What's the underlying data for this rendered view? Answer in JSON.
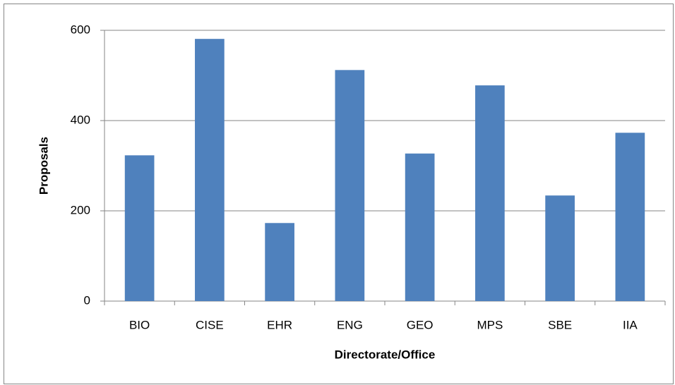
{
  "chart_data": {
    "type": "bar",
    "x_label": "Directorate/Office",
    "y_label": "Proposals",
    "categories": [
      "BIO",
      "CISE",
      "EHR",
      "ENG",
      "GEO",
      "MPS",
      "SBE",
      "IIA"
    ],
    "values": [
      323,
      581,
      173,
      512,
      327,
      478,
      234,
      373
    ],
    "color": "#4f81bd",
    "ylim": [
      0,
      600
    ],
    "yticks": [
      0,
      200,
      400,
      600
    ],
    "grid": true
  }
}
